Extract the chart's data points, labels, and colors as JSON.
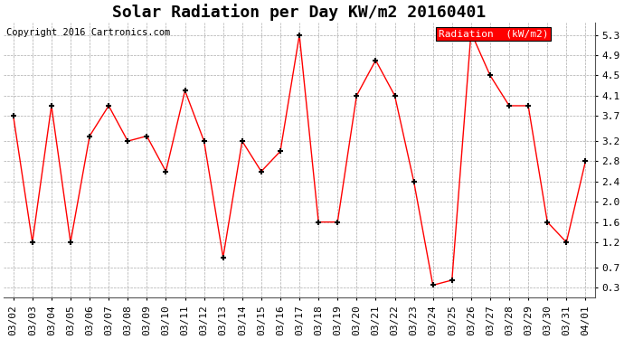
{
  "title": "Solar Radiation per Day KW/m2 20160401",
  "copyright_text": "Copyright 2016 Cartronics.com",
  "legend_label": "Radiation  (kW/m2)",
  "line_color": "red",
  "marker_color": "black",
  "background_color": "#ffffff",
  "grid_color": "#aaaaaa",
  "legend_bg": "red",
  "legend_text_color": "white",
  "dates": [
    "03/02",
    "03/03",
    "03/04",
    "03/05",
    "03/06",
    "03/07",
    "03/08",
    "03/09",
    "03/10",
    "03/11",
    "03/12",
    "03/13",
    "03/14",
    "03/15",
    "03/16",
    "03/17",
    "03/18",
    "03/19",
    "03/20",
    "03/21",
    "03/22",
    "03/23",
    "03/24",
    "03/25",
    "03/26",
    "03/27",
    "03/28",
    "03/29",
    "03/30",
    "03/31",
    "04/01"
  ],
  "values": [
    3.7,
    1.2,
    3.9,
    1.2,
    3.3,
    3.9,
    3.2,
    3.3,
    2.6,
    4.2,
    3.2,
    0.9,
    3.2,
    2.6,
    3.0,
    5.3,
    1.6,
    1.6,
    4.1,
    4.8,
    4.1,
    2.4,
    0.35,
    0.45,
    5.35,
    4.5,
    3.9,
    3.9,
    1.6,
    1.2,
    2.8
  ],
  "ylim": [
    0.1,
    5.55
  ],
  "yticks": [
    0.3,
    0.7,
    1.2,
    1.6,
    2.0,
    2.4,
    2.8,
    3.2,
    3.7,
    4.1,
    4.5,
    4.9,
    5.3
  ],
  "title_fontsize": 13,
  "tick_fontsize": 8,
  "copyright_fontsize": 7.5
}
